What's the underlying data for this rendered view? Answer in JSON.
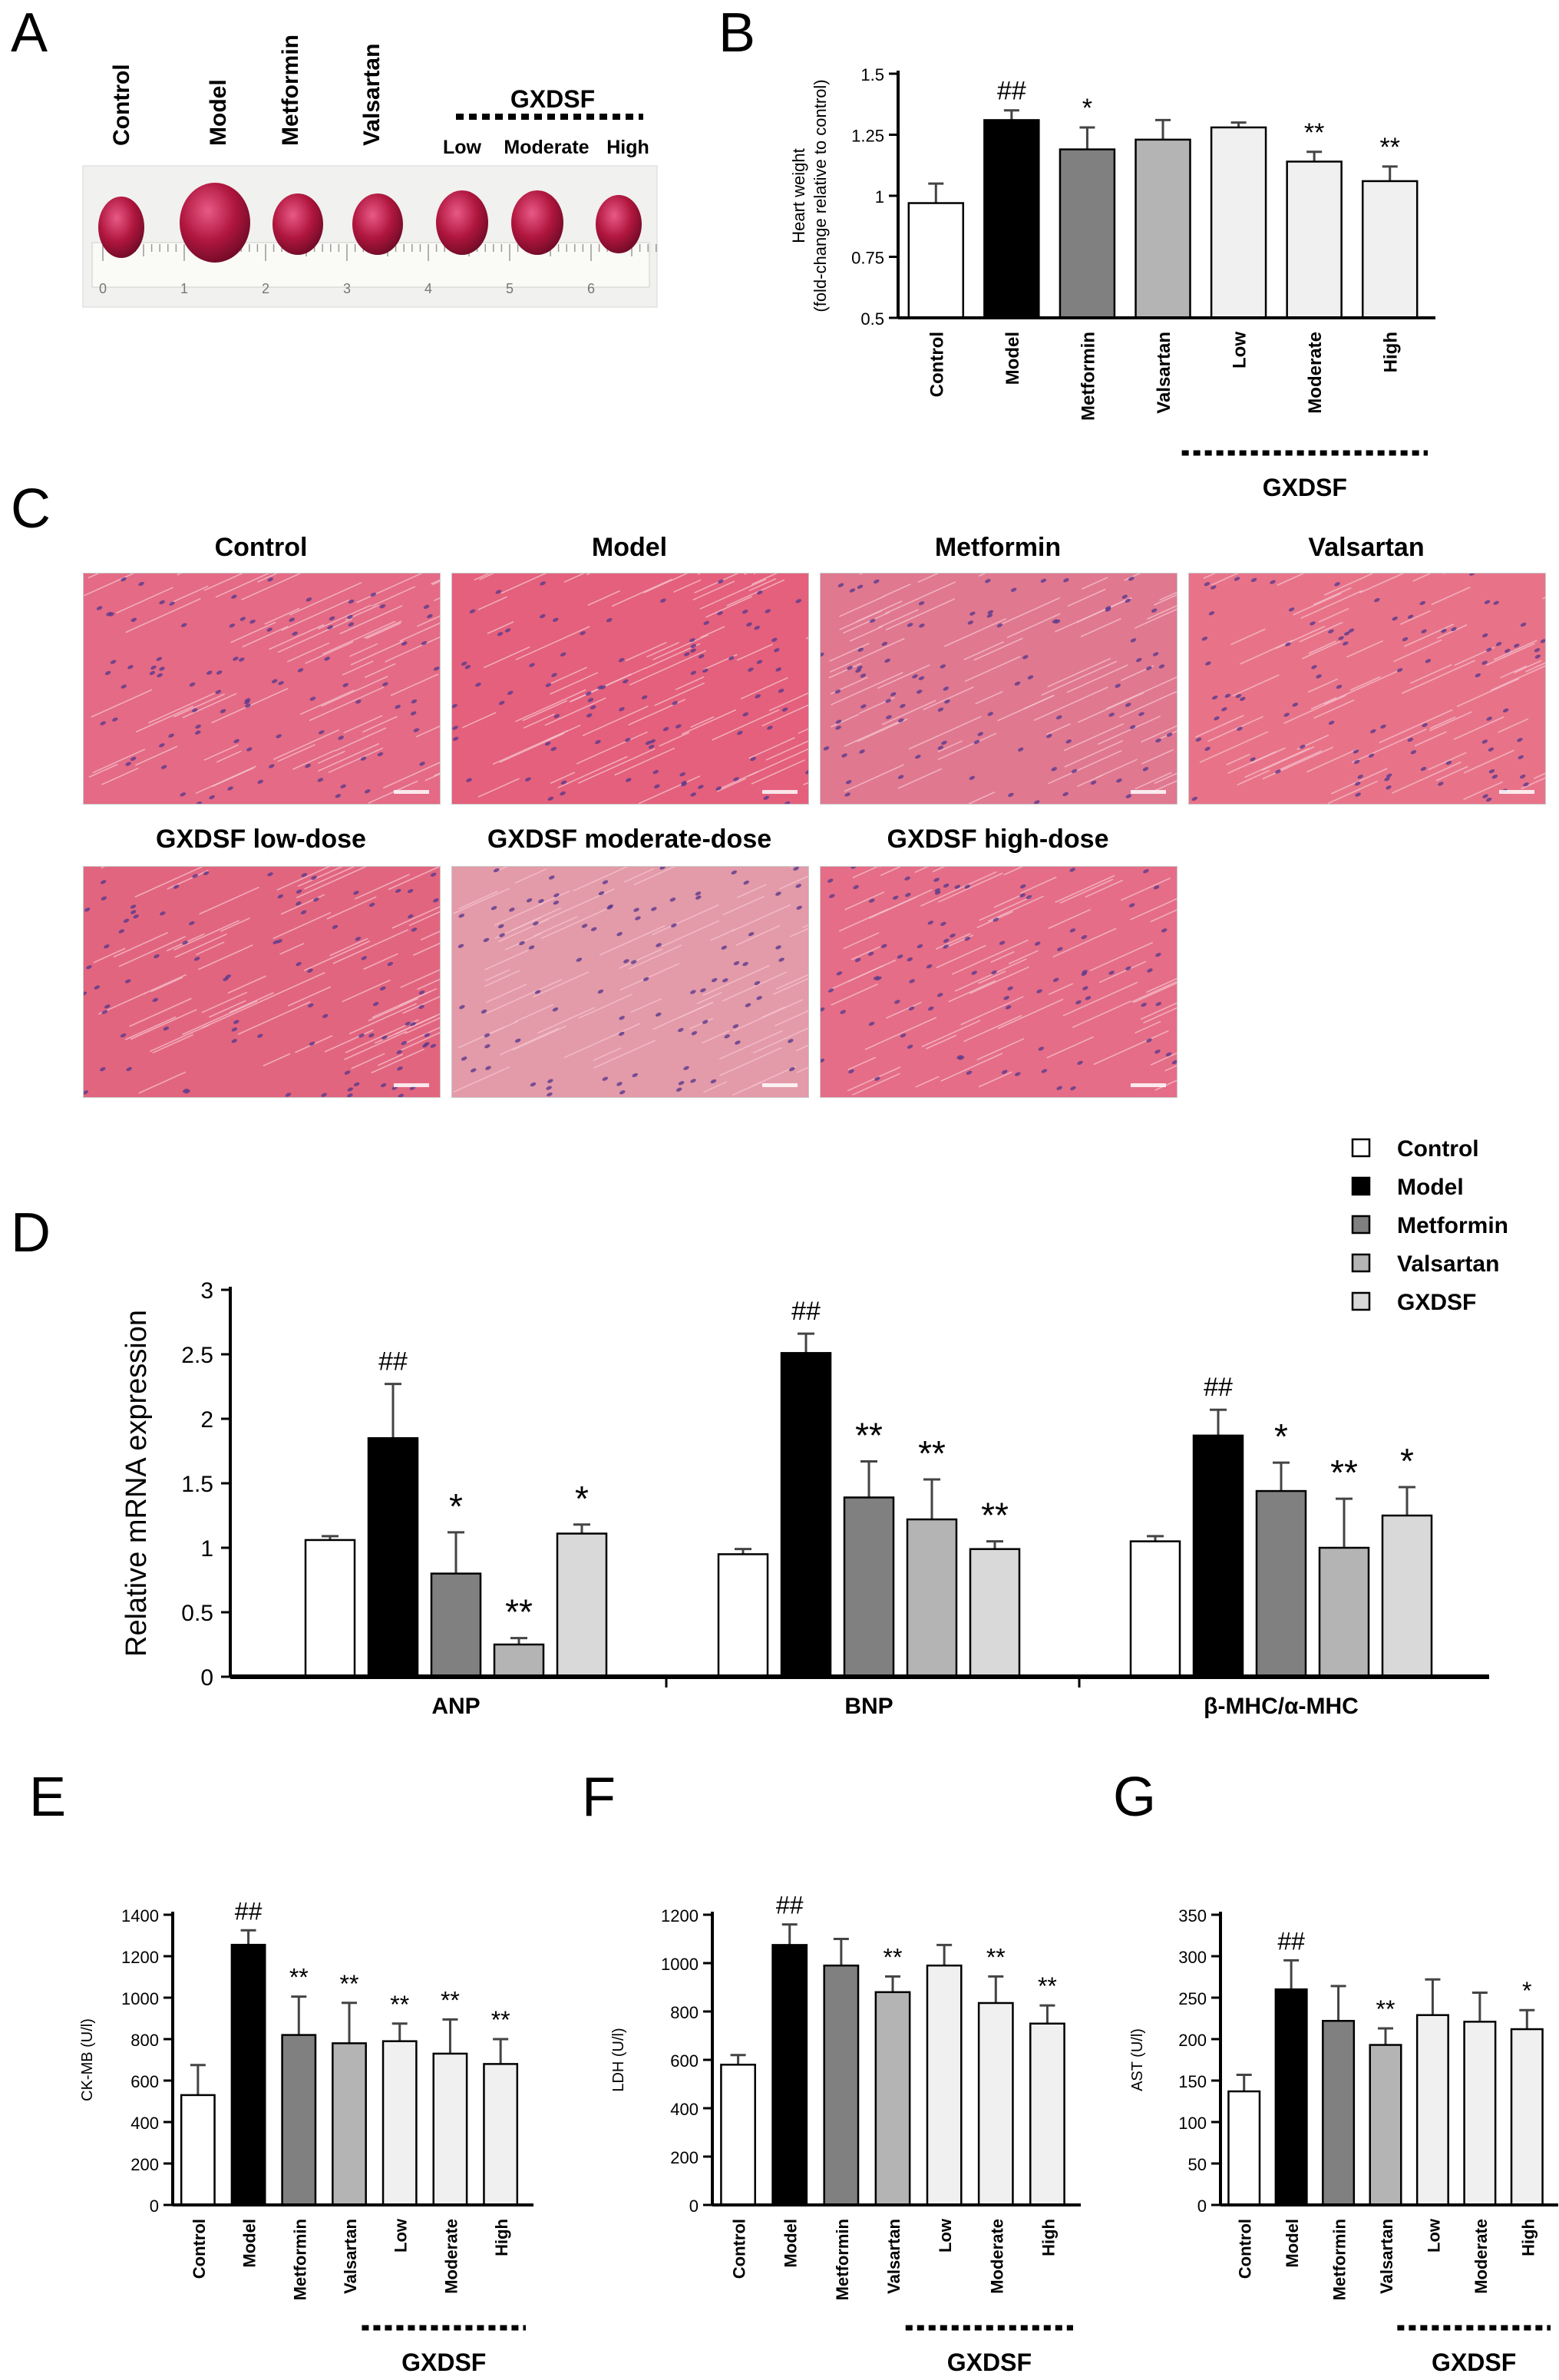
{
  "panels": {
    "a": {
      "letter": "A",
      "groups": [
        "Control",
        "Model",
        "Metformin",
        "Valsartan"
      ],
      "gxdsf": {
        "title": "GXDSF",
        "doses": [
          "Low",
          "Moderate",
          "High"
        ]
      },
      "ruler_ticks": [
        "0",
        "1",
        "2",
        "3",
        "4",
        "5",
        "6"
      ]
    },
    "b": {
      "letter": "B"
    },
    "c": {
      "letter": "C",
      "images": [
        "Control",
        "Model",
        "Metformin",
        "Valsartan",
        "GXDSF low-dose",
        "GXDSF moderate-dose",
        "GXDSF high-dose"
      ]
    },
    "d": {
      "letter": "D"
    },
    "e": {
      "letter": "E"
    },
    "f": {
      "letter": "F"
    },
    "g": {
      "letter": "G"
    }
  },
  "legend": [
    "Control",
    "Model",
    "Metformin",
    "Valsartan",
    "GXDSF"
  ],
  "colors": {
    "control": "#ffffff",
    "model": "#000000",
    "metformin": "#808080",
    "valsartan": "#b4b4b4",
    "gxdsf": "#d9d9d9",
    "gxdsf_light": "#f0f0f0",
    "tissue": "#e2657f"
  },
  "chart_data": [
    {
      "id": "B",
      "type": "bar",
      "categories": [
        "Control",
        "Model",
        "Metformin",
        "Valsartan",
        "Low",
        "Moderate",
        "High"
      ],
      "values": [
        0.97,
        1.31,
        1.19,
        1.23,
        1.28,
        1.14,
        1.06
      ],
      "errors": [
        0.08,
        0.04,
        0.09,
        0.08,
        0.02,
        0.04,
        0.06
      ],
      "annotations": [
        "",
        "##",
        "*",
        "",
        "",
        "**",
        "**"
      ],
      "ylabel": "Heart weight",
      "ylabel2": "(fold-change relative to control)",
      "ylim": [
        0.5,
        1.5
      ],
      "yticks": [
        "0.5",
        "0.75",
        "1",
        "1.25",
        "1.5"
      ],
      "group_label": "GXDSF"
    },
    {
      "id": "D",
      "type": "bar",
      "categories": [
        "ANP",
        "BNP",
        "β-MHC/α-MHC"
      ],
      "series": [
        {
          "name": "Control",
          "values": [
            1.06,
            0.95,
            1.05
          ],
          "errors": [
            0.03,
            0.04,
            0.04
          ]
        },
        {
          "name": "Model",
          "values": [
            1.85,
            2.51,
            1.87
          ],
          "errors": [
            0.42,
            0.15,
            0.2
          ]
        },
        {
          "name": "Metformin",
          "values": [
            0.8,
            1.39,
            1.44
          ],
          "errors": [
            0.32,
            0.28,
            0.22
          ]
        },
        {
          "name": "Valsartan",
          "values": [
            0.25,
            1.22,
            1.0
          ],
          "errors": [
            0.05,
            0.31,
            0.38
          ]
        },
        {
          "name": "GXDSF",
          "values": [
            1.11,
            0.99,
            1.25
          ],
          "errors": [
            0.07,
            0.06,
            0.22
          ]
        }
      ],
      "annotations": [
        [
          "",
          "##",
          "*",
          "**",
          "*"
        ],
        [
          "",
          "##",
          "**",
          "**",
          "**"
        ],
        [
          "",
          "##",
          "*",
          "**",
          "*"
        ]
      ],
      "ylabel": "Relative mRNA expression",
      "ylim": [
        0,
        3
      ],
      "yticks": [
        "0",
        "0.5",
        "1",
        "1.5",
        "2",
        "2.5",
        "3"
      ]
    },
    {
      "id": "E",
      "type": "bar",
      "categories": [
        "Control",
        "Model",
        "Metformin",
        "Valsartan",
        "Low",
        "Moderate",
        "High"
      ],
      "values": [
        530,
        1255,
        820,
        780,
        790,
        730,
        680
      ],
      "errors": [
        145,
        70,
        185,
        195,
        85,
        165,
        120
      ],
      "annotations": [
        "",
        "##",
        "**",
        "**",
        "**",
        "**",
        "**"
      ],
      "ylabel": "CK-MB (U/l)",
      "ylim": [
        0,
        1400
      ],
      "yticks": [
        "0",
        "200",
        "400",
        "600",
        "800",
        "1000",
        "1200",
        "1400"
      ],
      "group_label": "GXDSF"
    },
    {
      "id": "F",
      "type": "bar",
      "categories": [
        "Control",
        "Model",
        "Metformin",
        "Valsartan",
        "Low",
        "Moderate",
        "High"
      ],
      "values": [
        580,
        1075,
        990,
        880,
        990,
        835,
        750
      ],
      "errors": [
        40,
        85,
        110,
        65,
        85,
        110,
        75
      ],
      "annotations": [
        "",
        "##",
        "",
        "**",
        "",
        "**",
        "**"
      ],
      "ylabel": "LDH (U/l)",
      "ylim": [
        0,
        1200
      ],
      "yticks": [
        "0",
        "200",
        "400",
        "600",
        "800",
        "1000",
        "1200"
      ],
      "group_label": "GXDSF"
    },
    {
      "id": "G",
      "type": "bar",
      "categories": [
        "Control",
        "Model",
        "Metformin",
        "Valsartan",
        "Low",
        "Moderate",
        "High"
      ],
      "values": [
        137,
        260,
        222,
        193,
        229,
        221,
        212
      ],
      "errors": [
        20,
        35,
        42,
        20,
        43,
        35,
        23
      ],
      "annotations": [
        "",
        "##",
        "",
        "**",
        "",
        "",
        "*"
      ],
      "ylabel": "AST (U/l)",
      "ylim": [
        0,
        350
      ],
      "yticks": [
        "0",
        "50",
        "100",
        "150",
        "200",
        "250",
        "300",
        "350"
      ],
      "group_label": "GXDSF"
    }
  ]
}
